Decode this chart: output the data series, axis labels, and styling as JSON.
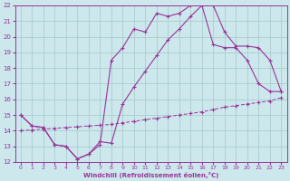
{
  "xlabel": "Windchill (Refroidissement éolien,°C)",
  "xlim": [
    -0.5,
    23.5
  ],
  "ylim": [
    12,
    22
  ],
  "yticks": [
    12,
    13,
    14,
    15,
    16,
    17,
    18,
    19,
    20,
    21,
    22
  ],
  "xticks": [
    0,
    1,
    2,
    3,
    4,
    5,
    6,
    7,
    8,
    9,
    10,
    11,
    12,
    13,
    14,
    15,
    16,
    17,
    18,
    19,
    20,
    21,
    22,
    23
  ],
  "bg_color": "#cce8ec",
  "grid_color": "#aacccc",
  "line_color": "#993399",
  "line1_x": [
    0,
    1,
    2,
    3,
    4,
    5,
    6,
    7,
    8,
    9,
    10,
    11,
    12,
    13,
    14,
    15,
    16,
    17,
    18,
    19,
    20,
    21,
    22,
    23
  ],
  "line1_y": [
    15.0,
    14.3,
    14.2,
    13.1,
    13.0,
    12.2,
    12.5,
    13.1,
    18.5,
    19.3,
    20.5,
    20.3,
    21.5,
    21.3,
    21.5,
    22.0,
    22.0,
    19.5,
    19.3,
    19.3,
    18.5,
    17.0,
    16.5,
    16.5
  ],
  "line2_x": [
    0,
    1,
    2,
    3,
    4,
    5,
    6,
    7,
    8,
    9,
    10,
    11,
    12,
    13,
    14,
    15,
    16,
    17,
    18,
    19,
    20,
    21,
    22,
    23
  ],
  "line2_y": [
    15.0,
    14.3,
    14.2,
    13.1,
    13.0,
    12.2,
    12.5,
    13.3,
    13.2,
    15.7,
    16.8,
    17.8,
    18.8,
    19.8,
    20.5,
    21.3,
    22.0,
    22.0,
    20.3,
    19.4,
    19.4,
    19.3,
    18.5,
    16.5
  ],
  "line3_x": [
    0,
    1,
    2,
    3,
    4,
    5,
    6,
    7,
    8,
    9,
    10,
    11,
    12,
    13,
    14,
    15,
    16,
    17,
    18,
    19,
    20,
    21,
    22,
    23
  ],
  "line3_y": [
    14.0,
    14.05,
    14.1,
    14.15,
    14.2,
    14.25,
    14.3,
    14.35,
    14.4,
    14.5,
    14.6,
    14.7,
    14.8,
    14.9,
    15.0,
    15.1,
    15.2,
    15.35,
    15.5,
    15.6,
    15.7,
    15.8,
    15.9,
    16.1
  ]
}
